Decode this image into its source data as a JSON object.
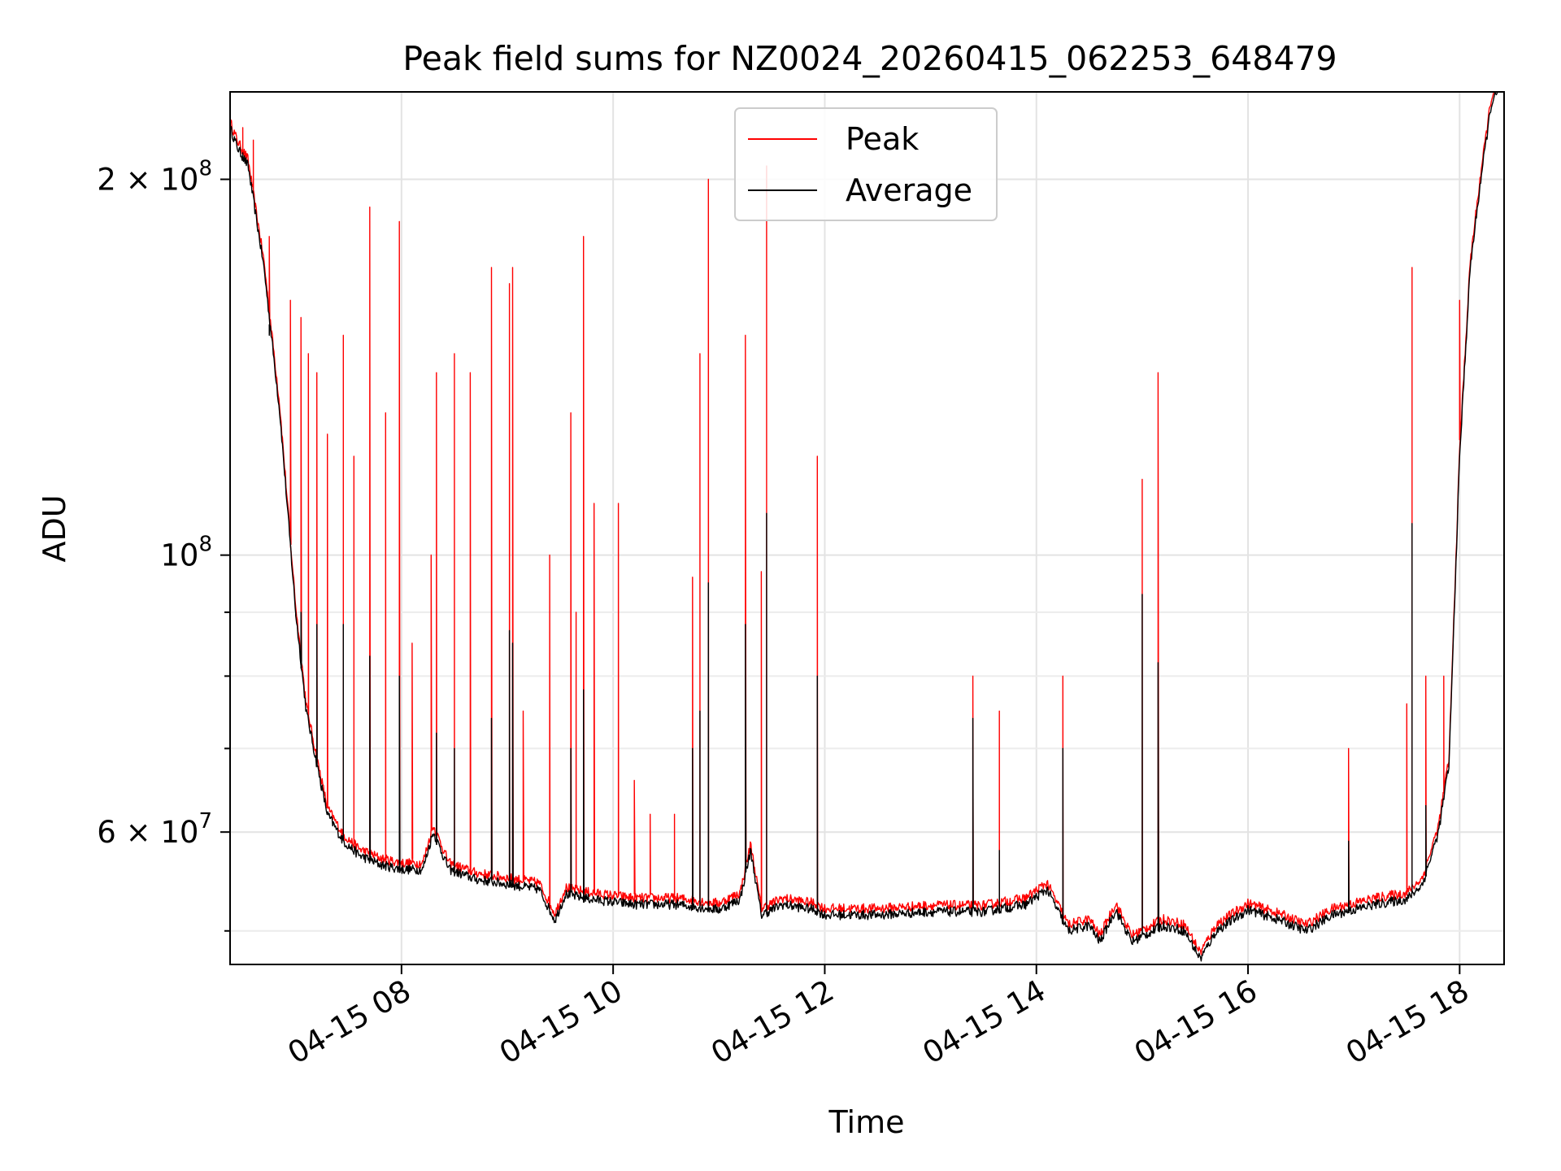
{
  "chart_data": {
    "type": "line",
    "title": "Peak field sums for NZ0024_20260415_062253_648479",
    "xlabel": "Time",
    "ylabel": "ADU",
    "yscale": "log",
    "xlim": [
      6.38,
      18.42
    ],
    "ylim": [
      47000000,
      235000000
    ],
    "x_ticks": [
      {
        "value": 8,
        "label": "04-15 08"
      },
      {
        "value": 10,
        "label": "04-15 10"
      },
      {
        "value": 12,
        "label": "04-15 12"
      },
      {
        "value": 14,
        "label": "04-15 14"
      },
      {
        "value": 16,
        "label": "04-15 16"
      },
      {
        "value": 18,
        "label": "04-15 18"
      }
    ],
    "y_major_ticks": [
      {
        "value": 200000000,
        "base": "2 × 10",
        "exp": "8"
      },
      {
        "value": 100000000,
        "base": "10",
        "exp": "8"
      },
      {
        "value": 60000000,
        "base": "6 × 10",
        "exp": "7"
      }
    ],
    "y_minor_ticks": [
      50000000,
      70000000,
      80000000,
      90000000
    ],
    "grid": true,
    "legend": {
      "position": "top-center",
      "entries": [
        {
          "label": "Peak",
          "color": "#ff0000"
        },
        {
          "label": "Average",
          "color": "#000000"
        }
      ]
    },
    "baseline": [
      [
        6.38,
        220000000
      ],
      [
        6.45,
        212000000
      ],
      [
        6.55,
        205000000
      ],
      [
        6.7,
        170000000
      ],
      [
        6.85,
        130000000
      ],
      [
        7.0,
        90000000
      ],
      [
        7.1,
        75000000
      ],
      [
        7.2,
        68000000
      ],
      [
        7.3,
        62000000
      ],
      [
        7.45,
        59000000
      ],
      [
        7.6,
        57500000
      ],
      [
        7.8,
        56500000
      ],
      [
        8.0,
        56000000
      ],
      [
        8.2,
        56000000
      ],
      [
        8.3,
        60000000
      ],
      [
        8.45,
        56000000
      ],
      [
        8.7,
        55000000
      ],
      [
        9.0,
        54500000
      ],
      [
        9.3,
        54000000
      ],
      [
        9.45,
        51000000
      ],
      [
        9.55,
        53500000
      ],
      [
        9.8,
        53000000
      ],
      [
        10.2,
        52500000
      ],
      [
        10.6,
        52500000
      ],
      [
        11.0,
        52000000
      ],
      [
        11.2,
        53000000
      ],
      [
        11.3,
        58000000
      ],
      [
        11.4,
        51500000
      ],
      [
        11.6,
        52500000
      ],
      [
        11.9,
        52000000
      ],
      [
        12.0,
        51500000
      ],
      [
        12.5,
        51500000
      ],
      [
        13.0,
        51800000
      ],
      [
        13.5,
        51800000
      ],
      [
        13.9,
        52500000
      ],
      [
        14.1,
        54000000
      ],
      [
        14.3,
        50000000
      ],
      [
        14.5,
        50500000
      ],
      [
        14.6,
        49000000
      ],
      [
        14.75,
        52000000
      ],
      [
        14.9,
        49000000
      ],
      [
        15.2,
        50500000
      ],
      [
        15.4,
        50000000
      ],
      [
        15.55,
        47500000
      ],
      [
        15.7,
        50000000
      ],
      [
        16.0,
        52000000
      ],
      [
        16.3,
        51000000
      ],
      [
        16.55,
        50000000
      ],
      [
        16.8,
        51500000
      ],
      [
        17.2,
        52500000
      ],
      [
        17.5,
        53000000
      ],
      [
        17.65,
        54500000
      ],
      [
        17.8,
        60000000
      ],
      [
        17.9,
        68000000
      ],
      [
        18.0,
        120000000
      ],
      [
        18.1,
        170000000
      ],
      [
        18.2,
        200000000
      ],
      [
        18.3,
        230000000
      ],
      [
        18.42,
        240000000
      ]
    ],
    "series": [
      {
        "name": "Peak",
        "color": "#ff0000",
        "spikes": [
          [
            6.5,
            220000000
          ],
          [
            6.6,
            215000000
          ],
          [
            6.75,
            180000000
          ],
          [
            6.95,
            160000000
          ],
          [
            7.05,
            155000000
          ],
          [
            7.12,
            145000000
          ],
          [
            7.2,
            140000000
          ],
          [
            7.3,
            125000000
          ],
          [
            7.45,
            150000000
          ],
          [
            7.55,
            120000000
          ],
          [
            7.7,
            190000000
          ],
          [
            7.85,
            130000000
          ],
          [
            7.98,
            185000000
          ],
          [
            8.1,
            85000000
          ],
          [
            8.28,
            100000000
          ],
          [
            8.33,
            140000000
          ],
          [
            8.5,
            145000000
          ],
          [
            8.65,
            140000000
          ],
          [
            8.85,
            170000000
          ],
          [
            9.02,
            165000000
          ],
          [
            9.05,
            170000000
          ],
          [
            9.15,
            75000000
          ],
          [
            9.4,
            100000000
          ],
          [
            9.6,
            130000000
          ],
          [
            9.65,
            90000000
          ],
          [
            9.72,
            180000000
          ],
          [
            9.82,
            110000000
          ],
          [
            10.05,
            110000000
          ],
          [
            10.2,
            66000000
          ],
          [
            10.35,
            62000000
          ],
          [
            10.58,
            62000000
          ],
          [
            10.75,
            96000000
          ],
          [
            10.82,
            145000000
          ],
          [
            10.9,
            200000000
          ],
          [
            11.25,
            150000000
          ],
          [
            11.4,
            97000000
          ],
          [
            11.45,
            205000000
          ],
          [
            11.93,
            120000000
          ],
          [
            13.4,
            80000000
          ],
          [
            13.65,
            75000000
          ],
          [
            14.25,
            80000000
          ],
          [
            15.0,
            115000000
          ],
          [
            15.15,
            140000000
          ],
          [
            16.95,
            70000000
          ],
          [
            17.5,
            76000000
          ],
          [
            17.55,
            170000000
          ],
          [
            17.68,
            80000000
          ],
          [
            17.85,
            80000000
          ],
          [
            18.0,
            160000000
          ]
        ]
      },
      {
        "name": "Average",
        "color": "#000000",
        "spikes": [
          [
            6.5,
            210000000
          ],
          [
            6.75,
            150000000
          ],
          [
            7.0,
            90000000
          ],
          [
            7.05,
            90000000
          ],
          [
            7.2,
            88000000
          ],
          [
            7.45,
            88000000
          ],
          [
            7.7,
            83000000
          ],
          [
            7.98,
            80000000
          ],
          [
            8.33,
            72000000
          ],
          [
            8.5,
            70000000
          ],
          [
            8.85,
            74000000
          ],
          [
            9.02,
            87000000
          ],
          [
            9.05,
            85000000
          ],
          [
            9.6,
            70000000
          ],
          [
            9.72,
            78000000
          ],
          [
            10.75,
            70000000
          ],
          [
            10.82,
            75000000
          ],
          [
            10.9,
            95000000
          ],
          [
            11.25,
            88000000
          ],
          [
            11.45,
            108000000
          ],
          [
            11.93,
            80000000
          ],
          [
            13.4,
            74000000
          ],
          [
            13.65,
            58000000
          ],
          [
            14.25,
            70000000
          ],
          [
            15.0,
            93000000
          ],
          [
            15.15,
            82000000
          ],
          [
            16.95,
            59000000
          ],
          [
            17.55,
            106000000
          ],
          [
            17.68,
            63000000
          ]
        ]
      }
    ]
  }
}
